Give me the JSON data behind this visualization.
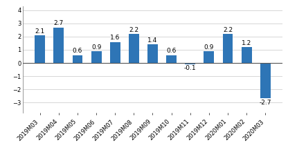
{
  "categories": [
    "2019M03",
    "2019M04",
    "2019M05",
    "2019M06",
    "2019M07",
    "2019M08",
    "2019M09",
    "2019M10",
    "2019M11",
    "2019M12",
    "2020M01",
    "2020M02",
    "2020M03"
  ],
  "values": [
    2.1,
    2.7,
    0.6,
    0.9,
    1.6,
    2.2,
    1.4,
    0.6,
    -0.1,
    0.9,
    2.2,
    1.2,
    -2.7
  ],
  "bar_color": "#2E75B6",
  "ylim": [
    -3.8,
    4.3
  ],
  "yticks": [
    -3,
    -2,
    -1,
    0,
    1,
    2,
    3,
    4
  ],
  "background_color": "#ffffff",
  "grid_color": "#d0d0d0",
  "value_fontsize": 6.5,
  "tick_fontsize": 6.0,
  "bar_width": 0.55
}
